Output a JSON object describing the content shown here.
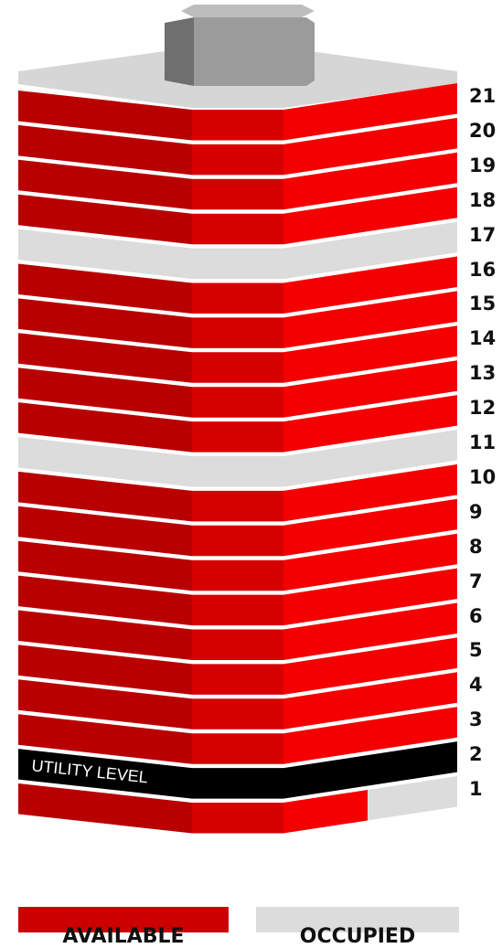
{
  "floors": [
    {
      "number": "21",
      "status": "available"
    },
    {
      "number": "20",
      "status": "available"
    },
    {
      "number": "19",
      "status": "available"
    },
    {
      "number": "18",
      "status": "available"
    },
    {
      "number": "17",
      "status": "occupied"
    },
    {
      "number": "16",
      "status": "available"
    },
    {
      "number": "15",
      "status": "available"
    },
    {
      "number": "14",
      "status": "available"
    },
    {
      "number": "13",
      "status": "available"
    },
    {
      "number": "12",
      "status": "available"
    },
    {
      "number": "11",
      "status": "occupied"
    },
    {
      "number": "10",
      "status": "available"
    },
    {
      "number": "9",
      "status": "available"
    },
    {
      "number": "8",
      "status": "available"
    },
    {
      "number": "7",
      "status": "available"
    },
    {
      "number": "6",
      "status": "available"
    },
    {
      "number": "5",
      "status": "available"
    },
    {
      "number": "4",
      "status": "available"
    },
    {
      "number": "3",
      "status": "available"
    },
    {
      "number": "2",
      "status": "utility",
      "label": "UTILITY LEVEL"
    },
    {
      "number": "1",
      "status": "partial"
    }
  ],
  "legend": {
    "available_label": "AVAILABLE",
    "occupied_label": "OCCUPIED"
  },
  "colors": {
    "available_left": "#b80000",
    "available_mid": "#d70000",
    "available_right": "#f50000",
    "occupied": "#dcdcdc",
    "utility": "#000000",
    "roof": "#d6d6d6",
    "rooftop_box_front": "#9b9b9b",
    "rooftop_box_side": "#6f6f6f",
    "rooftop_box_top": "#bdbdbd"
  }
}
